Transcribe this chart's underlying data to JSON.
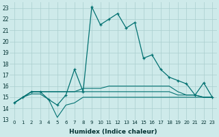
{
  "xlabel": "Humidex (Indice chaleur)",
  "bg_color": "#ceeaea",
  "grid_color": "#aacece",
  "line_color": "#007070",
  "xlim": [
    -0.5,
    23.5
  ],
  "ylim": [
    13,
    23.5
  ],
  "yticks": [
    13,
    14,
    15,
    16,
    17,
    18,
    19,
    20,
    21,
    22,
    23
  ],
  "xticks": [
    0,
    1,
    2,
    3,
    4,
    5,
    6,
    7,
    8,
    9,
    10,
    11,
    12,
    13,
    14,
    15,
    16,
    17,
    18,
    19,
    20,
    21,
    22,
    23
  ],
  "series_main": [
    14.5,
    15.0,
    15.5,
    15.5,
    14.8,
    14.3,
    15.2,
    17.5,
    15.5,
    23.1,
    21.5,
    22.0,
    22.5,
    21.2,
    21.7,
    18.5,
    18.8,
    17.5,
    16.8,
    16.5,
    16.2,
    15.2,
    16.3,
    15.0
  ],
  "series_flat": [
    [
      14.5,
      15.0,
      15.5,
      15.5,
      15.5,
      15.5,
      15.5,
      15.5,
      15.8,
      15.8,
      15.8,
      16.0,
      16.0,
      16.0,
      16.0,
      16.0,
      16.0,
      16.0,
      16.0,
      15.5,
      15.2,
      15.2,
      15.0,
      15.0
    ],
    [
      14.5,
      15.0,
      15.5,
      15.5,
      15.5,
      15.5,
      15.5,
      15.5,
      15.5,
      15.5,
      15.5,
      15.5,
      15.5,
      15.5,
      15.5,
      15.5,
      15.5,
      15.5,
      15.5,
      15.2,
      15.2,
      15.2,
      15.0,
      15.0
    ],
    [
      14.5,
      15.0,
      15.3,
      15.3,
      14.8,
      13.2,
      14.3,
      14.5,
      15.0,
      15.0,
      15.0,
      15.0,
      15.0,
      15.0,
      15.0,
      15.0,
      15.0,
      15.0,
      15.0,
      15.0,
      15.0,
      15.0,
      15.0,
      15.0
    ]
  ]
}
